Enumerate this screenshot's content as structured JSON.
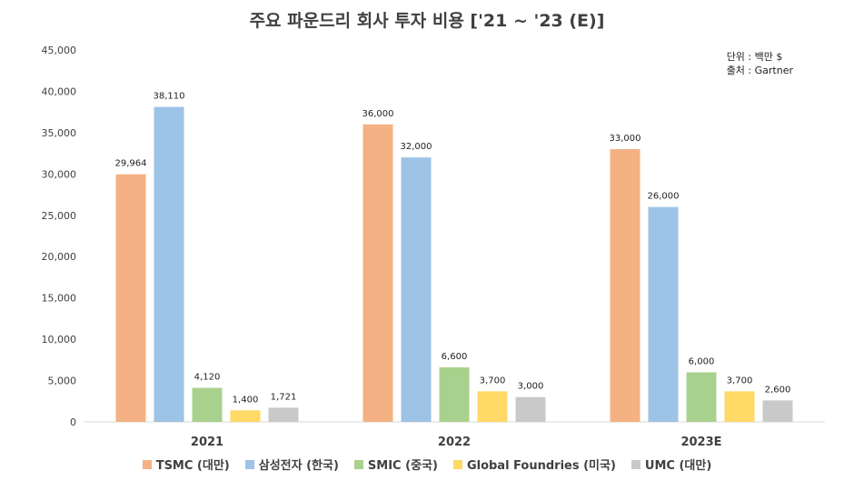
{
  "chart_data": {
    "type": "bar",
    "title": "주요 파운드리 회사 투자 비용 ['21 ~ '23 (E)]",
    "unit_note": "단위 : 백만 $",
    "source_note": "출처 : Gartner",
    "categories": [
      "2021",
      "2022",
      "2023E"
    ],
    "series": [
      {
        "name": "TSMC (대만)",
        "color": "#F4B183",
        "values": [
          29964,
          36000,
          33000
        ]
      },
      {
        "name": "삼성전자 (한국)",
        "color": "#9DC3E6",
        "values": [
          38110,
          32000,
          26000
        ]
      },
      {
        "name": "SMIC (중국)",
        "color": "#A9D18E",
        "values": [
          4120,
          6600,
          6000
        ]
      },
      {
        "name": "Global Foundries (미국)",
        "color": "#FFD966",
        "values": [
          1400,
          3700,
          3700
        ]
      },
      {
        "name": "UMC (대만)",
        "color": "#C9C9C9",
        "values": [
          1721,
          3000,
          2600
        ]
      }
    ],
    "ylim": [
      0,
      45000
    ],
    "yticks": [
      0,
      5000,
      10000,
      15000,
      20000,
      25000,
      30000,
      35000,
      40000,
      45000
    ],
    "xlabel": "",
    "ylabel": "",
    "legend_position": "bottom"
  }
}
